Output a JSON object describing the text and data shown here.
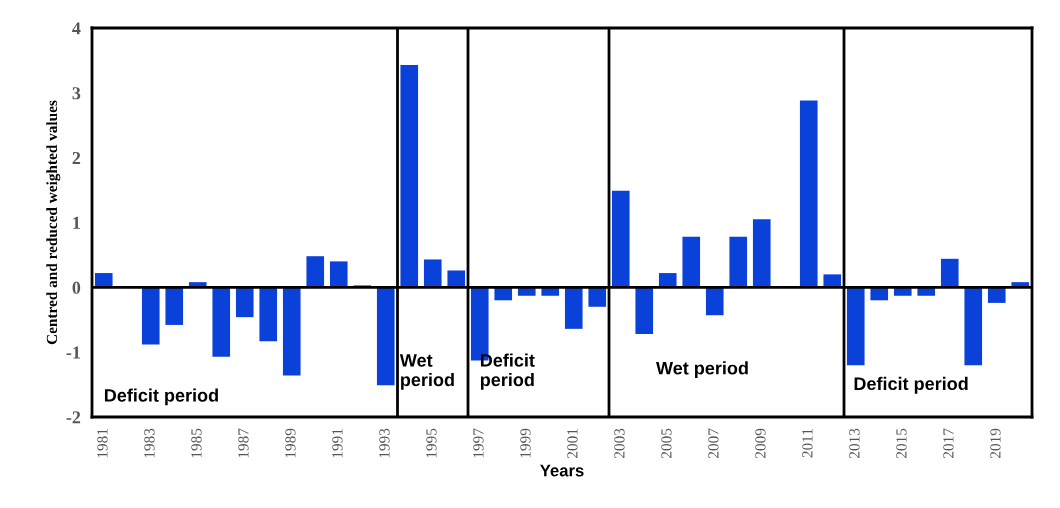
{
  "chart_data": {
    "type": "bar",
    "xlabel": "Years",
    "ylabel": "Centred and reduced weighted values",
    "x": [
      1981,
      1982,
      1983,
      1984,
      1985,
      1986,
      1987,
      1988,
      1989,
      1990,
      1991,
      1992,
      1993,
      1994,
      1995,
      1996,
      1997,
      1998,
      1999,
      2000,
      2001,
      2002,
      2003,
      2004,
      2005,
      2006,
      2007,
      2008,
      2009,
      2010,
      2011,
      2012,
      2013,
      2014,
      2015,
      2016,
      2017,
      2018,
      2019,
      2020
    ],
    "values": [
      0.22,
      0,
      -0.88,
      -0.58,
      0.08,
      -1.07,
      -0.46,
      -0.83,
      -1.36,
      0.48,
      0.4,
      0.03,
      -1.51,
      3.43,
      0.43,
      0.26,
      -1.13,
      -0.2,
      -0.13,
      -0.13,
      -0.64,
      -0.3,
      1.49,
      -0.72,
      0.22,
      0.78,
      -0.43,
      0.78,
      1.05,
      0,
      2.88,
      0.2,
      -1.2,
      -0.2,
      -0.13,
      -0.13,
      0.44,
      -1.2,
      -0.24,
      0.08
    ],
    "color": "#0a41d8",
    "xlim": [
      1980.5,
      2020.5
    ],
    "xticks": [
      1981,
      1983,
      1985,
      1987,
      1989,
      1991,
      1993,
      1995,
      1997,
      1999,
      2001,
      2003,
      2005,
      2007,
      2009,
      2011,
      2013,
      2015,
      2017,
      2019
    ],
    "ylim": [
      -2,
      4
    ],
    "yticks": [
      -2,
      -1,
      0,
      1,
      2,
      3,
      4
    ],
    "ref_lines": [
      {
        "axis": "y",
        "value": 0,
        "color": "#000000"
      },
      {
        "axis": "x",
        "value": 1993.5,
        "color": "#000000"
      },
      {
        "axis": "x",
        "value": 1996.5,
        "color": "#000000"
      },
      {
        "axis": "x",
        "value": 2002.5,
        "color": "#000000"
      },
      {
        "axis": "x",
        "value": 2012.5,
        "color": "#000000"
      }
    ],
    "annotations": [
      "Deficit period",
      "Wet\nperiod",
      "Deficit\nperiod",
      "Wet period",
      "Deficit period"
    ],
    "grid": false
  }
}
